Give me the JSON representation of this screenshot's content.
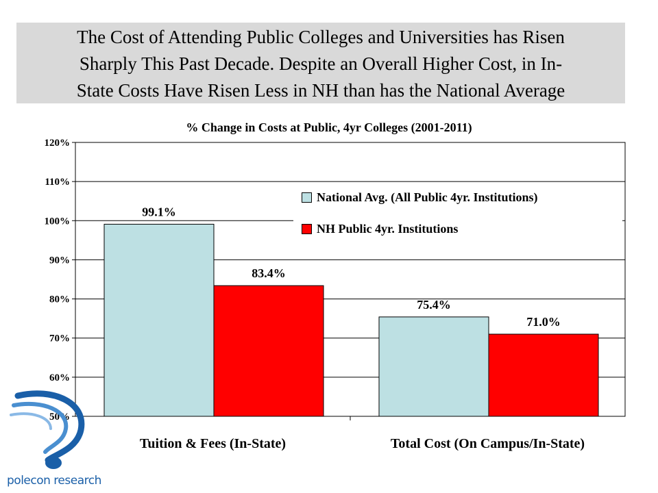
{
  "slide": {
    "title_lines": [
      "The Cost of Attending Public Colleges and Universities has Risen",
      "Sharply This Past Decade.  Despite an Overall Higher Cost, in In-",
      "State Costs Have Risen Less in NH than has the National Average"
    ]
  },
  "logo": {
    "text": "polecon research",
    "icon": "polecon-logo-icon"
  },
  "chart_data": {
    "type": "bar",
    "title": "% Change in Costs at Public, 4yr Colleges (2001-2011)",
    "categories": [
      "Tuition & Fees (In-State)",
      "Total Cost (On Campus/In-State)"
    ],
    "series": [
      {
        "name": "National Avg.  (All Public 4yr. Institutions)",
        "values": [
          99.1,
          75.4
        ],
        "labels": [
          "99.1%",
          "75.4%"
        ],
        "color": "#bde0e3"
      },
      {
        "name": "NH Public 4yr. Institutions",
        "values": [
          83.4,
          71.0
        ],
        "labels": [
          "83.4%",
          "71.0%"
        ],
        "color": "#ff0000"
      }
    ],
    "ylim": [
      50,
      120
    ],
    "yticks": [
      50,
      60,
      70,
      80,
      90,
      100,
      110,
      120
    ],
    "ytick_labels": [
      "50%",
      "60%",
      "70%",
      "80%",
      "90%",
      "100%",
      "110%",
      "120%"
    ],
    "xlabel": "",
    "ylabel": "",
    "grid": true,
    "legend_position": "top-right"
  }
}
